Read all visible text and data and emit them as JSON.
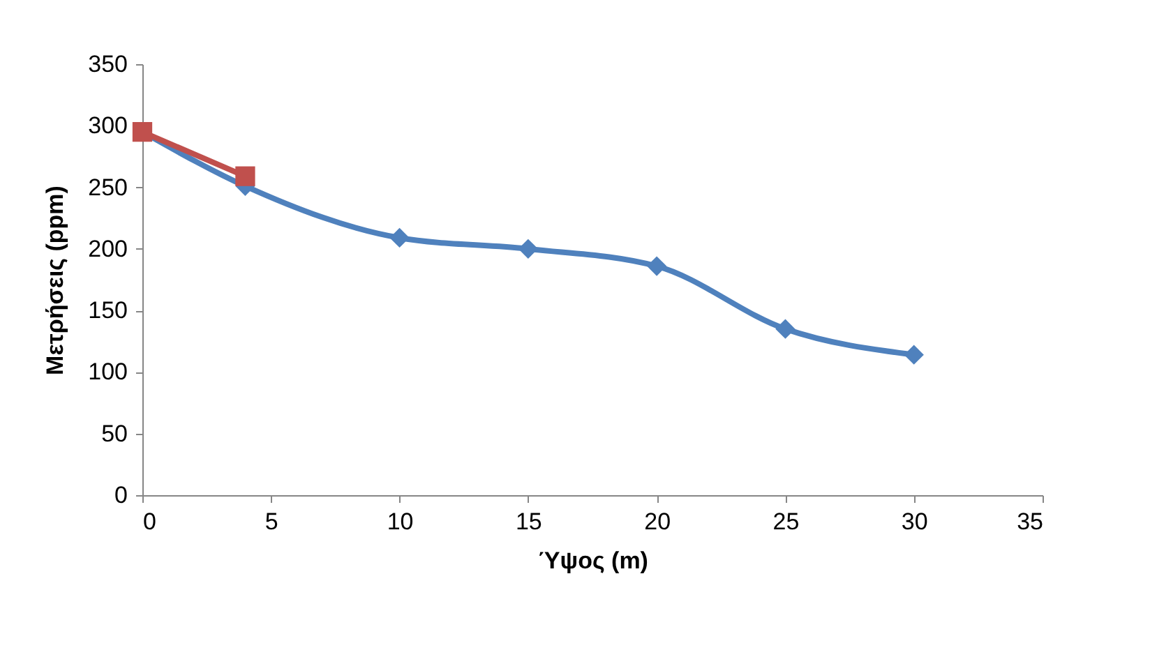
{
  "chart_data": {
    "type": "line",
    "xlabel": "Ύψος (m)",
    "ylabel": "Μετρήσεις (ppm)",
    "xlim": [
      0,
      35
    ],
    "xticks": [
      0,
      5,
      10,
      15,
      20,
      25,
      30,
      35
    ],
    "ylim": [
      0,
      350
    ],
    "yticks": [
      0,
      50,
      100,
      150,
      200,
      250,
      300,
      350
    ],
    "grid": false,
    "series": [
      {
        "color": "#4f81bd",
        "marker": "diamond",
        "x": [
          0,
          4,
          10,
          15,
          20,
          25,
          30
        ],
        "values": [
          295,
          251,
          209,
          200,
          186,
          135,
          114
        ]
      },
      {
        "color": "#c0504d",
        "marker": "square",
        "x": [
          0,
          4
        ],
        "values": [
          295,
          259
        ]
      }
    ]
  }
}
